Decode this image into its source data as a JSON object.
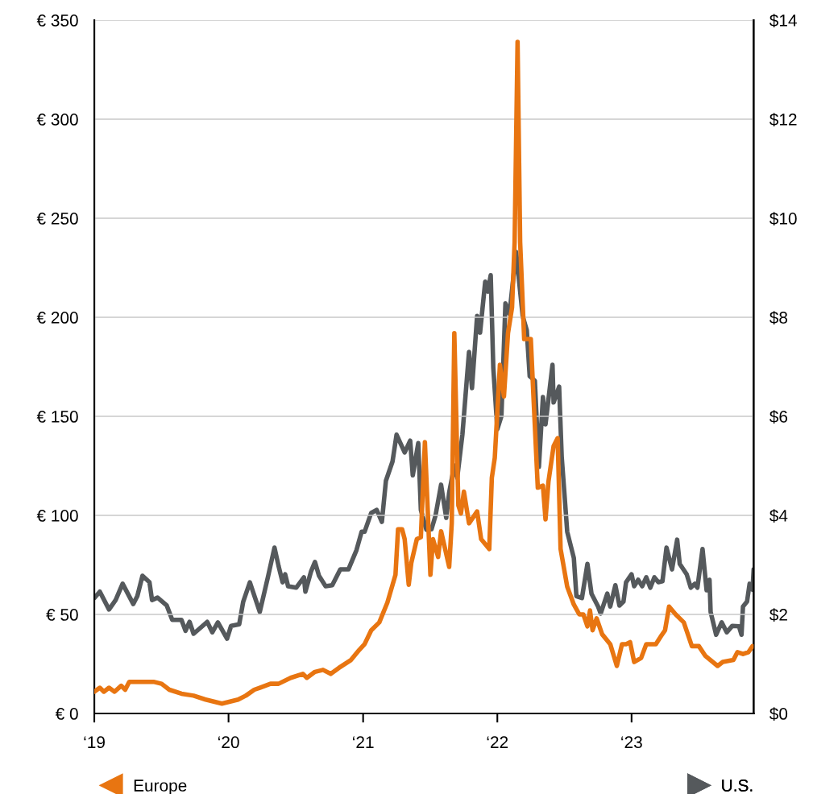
{
  "chart_data": {
    "type": "line",
    "legend": "bottom",
    "grid": "y",
    "xlim": [
      "2019-01-01",
      "2023-11-29"
    ],
    "xticks": [
      {
        "value": "2019-01-01",
        "label": "‘19"
      },
      {
        "value": "2020-01-01",
        "label": "‘20"
      },
      {
        "value": "2021-01-01",
        "label": "‘21"
      },
      {
        "value": "2022-01-01",
        "label": "‘22"
      },
      {
        "value": "2023-01-01",
        "label": "‘23"
      }
    ],
    "ylim": [
      0,
      350
    ],
    "yticks": [
      {
        "value": 0,
        "label": "€ 0"
      },
      {
        "value": 50,
        "label": "€ 50"
      },
      {
        "value": 100,
        "label": "€ 100"
      },
      {
        "value": 150,
        "label": "€ 150"
      },
      {
        "value": 200,
        "label": "€ 200"
      },
      {
        "value": 250,
        "label": "€ 250"
      },
      {
        "value": 300,
        "label": "€ 300"
      },
      {
        "value": 350,
        "label": "€ 350"
      }
    ],
    "y2lim": [
      0,
      14
    ],
    "y2ticks": [
      {
        "value": 0,
        "label": "$0"
      },
      {
        "value": 2,
        "label": "$2"
      },
      {
        "value": 4,
        "label": "$4"
      },
      {
        "value": 6,
        "label": "$6"
      },
      {
        "value": 8,
        "label": "$8"
      },
      {
        "value": 10,
        "label": "$10"
      },
      {
        "value": 12,
        "label": "$12"
      },
      {
        "value": 14,
        "label": "$14"
      }
    ],
    "series": [
      {
        "name": "Europe",
        "color": "#e87511",
        "axis": "y",
        "x": [
          "2019-01-01",
          "2019-01-16",
          "2019-01-27",
          "2019-02-10",
          "2019-02-25",
          "2019-03-15",
          "2019-03-26",
          "2019-04-06",
          "2019-04-24",
          "2019-05-20",
          "2019-06-11",
          "2019-07-03",
          "2019-07-24",
          "2019-08-26",
          "2019-09-28",
          "2019-10-31",
          "2019-11-22",
          "2019-12-14",
          "2020-01-05",
          "2020-01-27",
          "2020-02-17",
          "2020-03-11",
          "2020-03-26",
          "2020-04-24",
          "2020-05-16",
          "2020-06-18",
          "2020-07-21",
          "2020-08-01",
          "2020-08-23",
          "2020-09-14",
          "2020-10-05",
          "2020-10-27",
          "2020-11-29",
          "2020-12-21",
          "2021-01-05",
          "2021-01-23",
          "2021-02-14",
          "2021-03-08",
          "2021-03-30",
          "2021-04-06",
          "2021-04-17",
          "2021-04-24",
          "2021-05-05",
          "2021-05-12",
          "2021-05-27",
          "2021-06-07",
          "2021-06-18",
          "2021-07-03",
          "2021-07-10",
          "2021-07-24",
          "2021-08-01",
          "2021-08-23",
          "2021-08-30",
          "2021-09-06",
          "2021-09-17",
          "2021-09-24",
          "2021-10-02",
          "2021-10-16",
          "2021-11-07",
          "2021-11-18",
          "2021-12-10",
          "2021-12-17",
          "2021-12-25",
          "2022-01-08",
          "2022-01-19",
          "2022-01-30",
          "2022-02-10",
          "2022-02-17",
          "2022-02-25",
          "2022-03-04",
          "2022-03-15",
          "2022-04-02",
          "2022-04-10",
          "2022-04-21",
          "2022-05-05",
          "2022-05-12",
          "2022-05-20",
          "2022-06-03",
          "2022-06-14",
          "2022-06-22",
          "2022-07-10",
          "2022-07-28",
          "2022-08-12",
          "2022-08-23",
          "2022-09-03",
          "2022-09-10",
          "2022-09-17",
          "2022-09-28",
          "2022-10-13",
          "2022-11-04",
          "2022-11-22",
          "2022-12-06",
          "2022-12-17",
          "2022-12-28",
          "2023-01-08",
          "2023-01-27",
          "2023-02-10",
          "2023-03-08",
          "2023-03-22",
          "2023-04-02",
          "2023-04-13",
          "2023-05-01",
          "2023-05-23",
          "2023-06-14",
          "2023-07-03",
          "2023-07-21",
          "2023-08-23",
          "2023-09-06",
          "2023-10-05",
          "2023-10-16",
          "2023-10-31",
          "2023-11-15",
          "2023-11-26"
        ],
        "values": [
          11,
          13,
          11,
          13,
          11,
          14,
          12,
          16,
          16,
          16,
          16,
          15,
          12,
          10,
          9,
          7,
          6,
          5,
          6,
          7,
          9,
          12,
          13,
          15,
          15,
          18,
          20,
          18,
          21,
          22,
          20,
          23,
          27,
          32,
          35,
          42,
          46,
          56,
          70,
          93,
          93,
          88,
          65,
          76,
          88,
          89,
          137,
          70,
          88,
          79,
          92,
          74,
          96,
          192,
          105,
          101,
          112,
          96,
          102,
          88,
          83,
          119,
          129,
          176,
          160,
          192,
          205,
          238,
          339,
          238,
          189,
          189,
          157,
          114,
          115,
          98,
          117,
          135,
          139,
          83,
          64,
          55,
          50,
          50,
          44,
          52,
          42,
          48,
          40,
          35,
          24,
          35,
          35,
          36,
          26,
          28,
          35,
          35,
          39,
          42,
          54,
          50,
          46,
          34,
          34,
          29,
          24,
          26,
          27,
          31,
          30,
          31,
          34
        ]
      },
      {
        "name": "U.S.",
        "color": "#55595c",
        "axis": "y2",
        "x": [
          "2019-01-01",
          "2019-01-16",
          "2019-02-10",
          "2019-02-28",
          "2019-03-19",
          "2019-04-17",
          "2019-04-28",
          "2019-05-12",
          "2019-05-31",
          "2019-06-07",
          "2019-06-22",
          "2019-07-17",
          "2019-08-01",
          "2019-08-26",
          "2019-09-06",
          "2019-09-17",
          "2019-09-28",
          "2019-11-04",
          "2019-11-18",
          "2019-12-03",
          "2019-12-28",
          "2020-01-08",
          "2020-01-30",
          "2020-02-10",
          "2020-02-28",
          "2020-03-26",
          "2020-04-17",
          "2020-05-05",
          "2020-05-16",
          "2020-05-27",
          "2020-06-03",
          "2020-06-11",
          "2020-07-03",
          "2020-07-24",
          "2020-07-28",
          "2020-08-12",
          "2020-08-23",
          "2020-09-03",
          "2020-09-21",
          "2020-10-09",
          "2020-10-31",
          "2020-11-22",
          "2020-12-14",
          "2020-12-28",
          "2021-01-05",
          "2021-01-23",
          "2021-02-07",
          "2021-02-21",
          "2021-03-04",
          "2021-03-22",
          "2021-04-02",
          "2021-04-24",
          "2021-05-09",
          "2021-05-16",
          "2021-05-31",
          "2021-06-07",
          "2021-06-22",
          "2021-07-06",
          "2021-07-17",
          "2021-08-01",
          "2021-08-15",
          "2021-08-23",
          "2021-09-06",
          "2021-09-14",
          "2021-09-28",
          "2021-10-16",
          "2021-10-24",
          "2021-11-07",
          "2021-11-15",
          "2021-11-29",
          "2021-12-06",
          "2021-12-14",
          "2021-12-21",
          "2022-01-01",
          "2022-01-12",
          "2022-01-23",
          "2022-02-03",
          "2022-02-21",
          "2022-03-11",
          "2022-03-22",
          "2022-03-30",
          "2022-04-13",
          "2022-04-24",
          "2022-05-05",
          "2022-05-12",
          "2022-05-31",
          "2022-06-03",
          "2022-06-18",
          "2022-06-25",
          "2022-07-10",
          "2022-07-28",
          "2022-08-04",
          "2022-08-19",
          "2022-09-03",
          "2022-09-14",
          "2022-10-02",
          "2022-10-09",
          "2022-10-27",
          "2022-11-04",
          "2022-11-18",
          "2022-11-29",
          "2022-12-10",
          "2022-12-17",
          "2023-01-01",
          "2023-01-08",
          "2023-01-19",
          "2023-01-30",
          "2023-02-10",
          "2023-02-21",
          "2023-03-04",
          "2023-03-15",
          "2023-03-26",
          "2023-04-06",
          "2023-04-21",
          "2023-05-05",
          "2023-05-12",
          "2023-05-31",
          "2023-06-11",
          "2023-06-22",
          "2023-06-29",
          "2023-07-13",
          "2023-07-24",
          "2023-08-01",
          "2023-08-04",
          "2023-08-19",
          "2023-09-03",
          "2023-09-17",
          "2023-10-02",
          "2023-10-20",
          "2023-10-27",
          "2023-10-31",
          "2023-11-11",
          "2023-11-18",
          "2023-11-26",
          "2023-11-29"
        ],
        "values": [
          2.33,
          2.46,
          2.1,
          2.29,
          2.62,
          2.21,
          2.37,
          2.78,
          2.65,
          2.29,
          2.34,
          2.18,
          1.89,
          1.89,
          1.67,
          1.85,
          1.61,
          1.85,
          1.64,
          1.84,
          1.51,
          1.77,
          1.8,
          2.26,
          2.65,
          2.05,
          2.75,
          3.35,
          2.98,
          2.65,
          2.81,
          2.57,
          2.54,
          2.75,
          2.46,
          2.86,
          3.06,
          2.78,
          2.57,
          2.59,
          2.91,
          2.91,
          3.3,
          3.67,
          3.67,
          4.05,
          4.11,
          3.87,
          4.7,
          5.09,
          5.63,
          5.27,
          5.51,
          4.81,
          5.46,
          4.11,
          3.71,
          3.72,
          4.0,
          4.62,
          3.95,
          4.46,
          5.01,
          4.76,
          5.63,
          7.3,
          6.57,
          8.03,
          7.69,
          8.72,
          8.52,
          8.85,
          6.98,
          5.74,
          6.0,
          8.28,
          8.07,
          9.32,
          8.02,
          7.74,
          6.81,
          6.72,
          4.98,
          6.39,
          5.84,
          7.04,
          6.28,
          6.6,
          5.19,
          3.67,
          3.14,
          2.37,
          2.33,
          3.02,
          2.42,
          2.16,
          2.02,
          2.42,
          2.16,
          2.59,
          2.18,
          2.26,
          2.65,
          2.81,
          2.57,
          2.7,
          2.57,
          2.75,
          2.54,
          2.75,
          2.65,
          2.67,
          3.35,
          2.91,
          3.51,
          3.02,
          2.81,
          2.54,
          2.62,
          2.54,
          3.32,
          2.49,
          2.7,
          2.05,
          1.59,
          1.84,
          1.64,
          1.77,
          1.76,
          1.59,
          2.16,
          2.26,
          2.62,
          2.5,
          2.91
        ]
      }
    ]
  }
}
